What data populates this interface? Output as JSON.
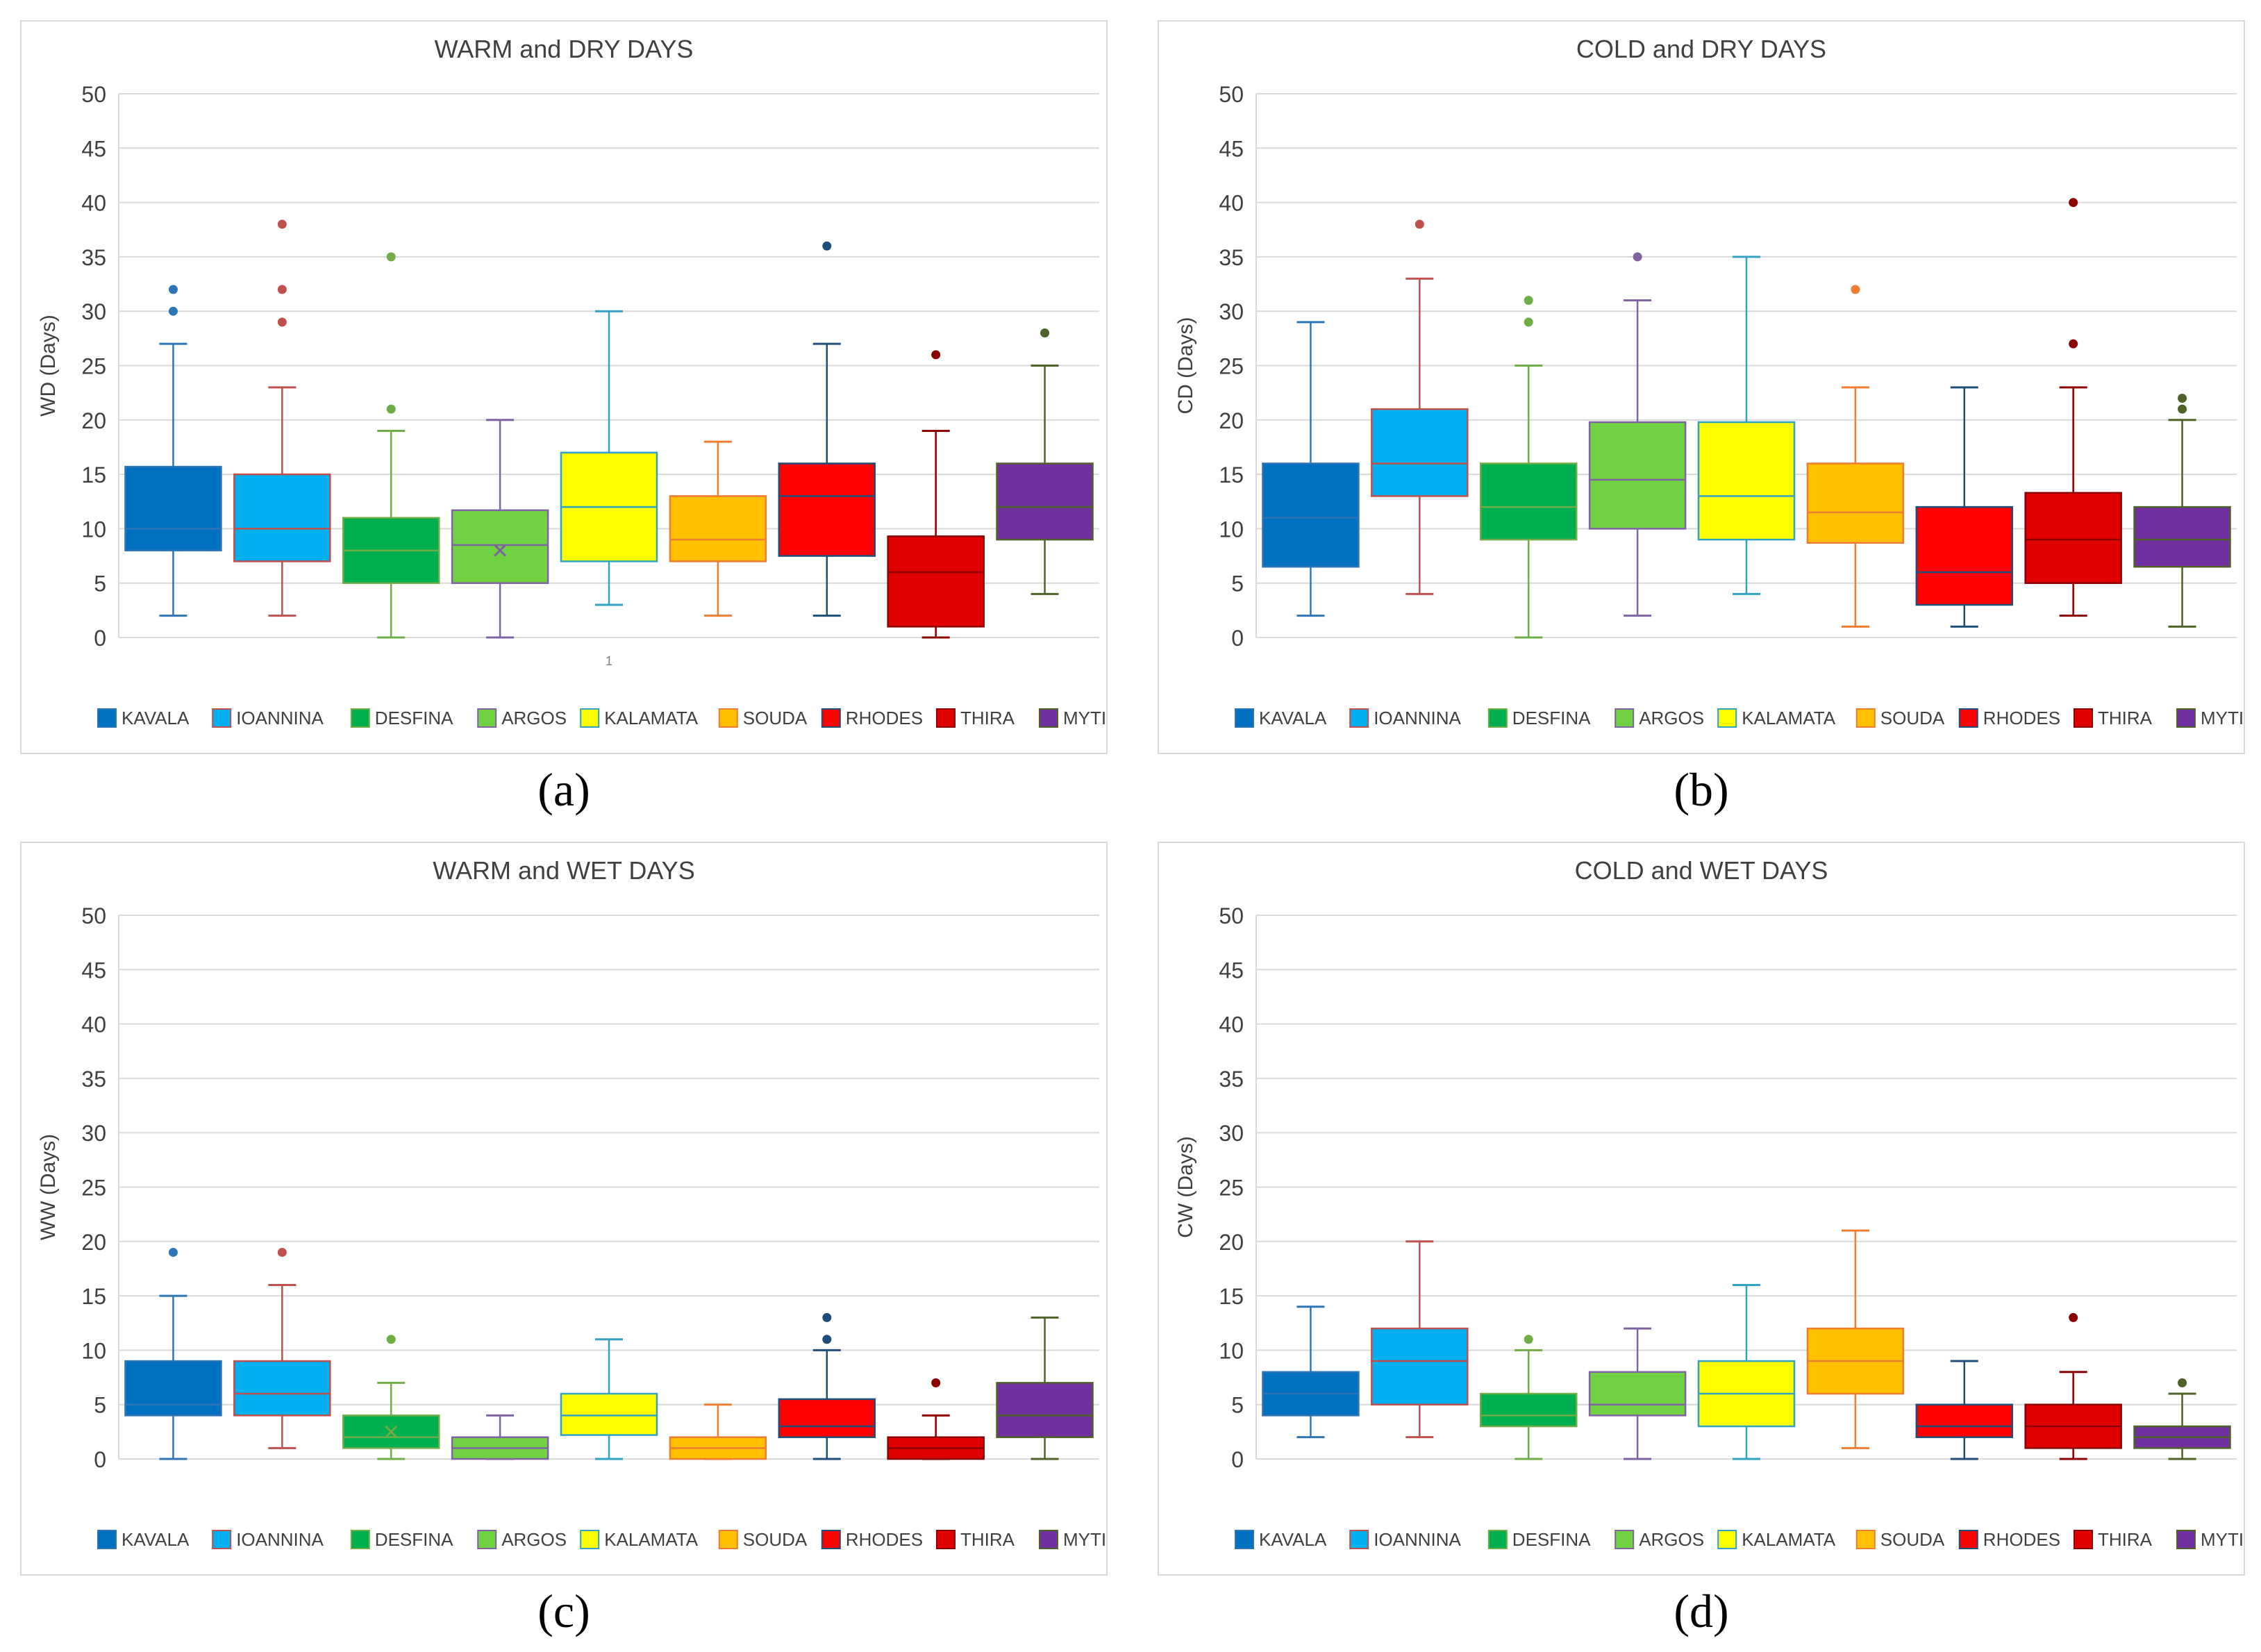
{
  "figure": {
    "panel_letters": [
      "(a)",
      "(b)",
      "(c)",
      "(d)"
    ]
  },
  "chart_data": [
    {
      "type": "boxplot",
      "title": "WARM and DRY DAYS",
      "ylabel": "WD (Days)",
      "xlabel": "",
      "x_tick_labels": [
        "1"
      ],
      "ylim": [
        0,
        50
      ],
      "yticks": [
        0,
        5,
        10,
        15,
        20,
        25,
        30,
        35,
        40,
        45,
        50
      ],
      "legend_position": "bottom",
      "series": [
        {
          "name": "KAVALA",
          "color": "#0070c0",
          "whisker_color": "#2e75b6",
          "whisker_low": 2,
          "q1": 8,
          "median": 10,
          "q3": 15.7,
          "whisker_high": 27,
          "outliers": [
            30,
            32
          ]
        },
        {
          "name": "IOANNINA",
          "color": "#00b0f0",
          "whisker_color": "#c0504d",
          "whisker_low": 2,
          "q1": 7,
          "median": 10,
          "q3": 15,
          "whisker_high": 23,
          "outliers": [
            29,
            32,
            38
          ]
        },
        {
          "name": "DESFINA",
          "color": "#00b050",
          "whisker_color": "#70ad47",
          "whisker_low": 0,
          "q1": 5,
          "median": 8,
          "q3": 11,
          "whisker_high": 19,
          "outliers": [
            21,
            35
          ]
        },
        {
          "name": "ARGOS",
          "color": "#70d142",
          "whisker_color": "#8064a2",
          "whisker_low": 0,
          "q1": 5,
          "median": 8.5,
          "q3": 11.7,
          "whisker_high": 20,
          "outliers": [],
          "mean": 8
        },
        {
          "name": "KALAMATA",
          "color": "#ffff00",
          "whisker_color": "#31a2c4",
          "whisker_low": 3,
          "q1": 7,
          "median": 12,
          "q3": 17,
          "whisker_high": 30,
          "outliers": []
        },
        {
          "name": "SOUDA",
          "color": "#ffc000",
          "whisker_color": "#ed7d31",
          "whisker_low": 2,
          "q1": 7,
          "median": 9,
          "q3": 13,
          "whisker_high": 18,
          "outliers": []
        },
        {
          "name": "RHODES",
          "color": "#ff0000",
          "whisker_color": "#1f4e79",
          "whisker_low": 2,
          "q1": 7.5,
          "median": 13,
          "q3": 16,
          "whisker_high": 27,
          "outliers": [
            36
          ]
        },
        {
          "name": "THIRA",
          "color": "#e00000",
          "whisker_color": "#8b0000",
          "whisker_low": 0,
          "q1": 1,
          "median": 6,
          "q3": 9.3,
          "whisker_high": 19,
          "outliers": [
            26
          ]
        },
        {
          "name": "MYTILINI",
          "color": "#7030a0",
          "whisker_color": "#4f6228",
          "whisker_low": 4,
          "q1": 9,
          "median": 12,
          "q3": 16,
          "whisker_high": 25,
          "outliers": [
            28
          ]
        }
      ]
    },
    {
      "type": "boxplot",
      "title": "COLD and DRY DAYS",
      "ylabel": "CD (Days)",
      "xlabel": "",
      "x_tick_labels": [],
      "ylim": [
        0,
        50
      ],
      "yticks": [
        0,
        5,
        10,
        15,
        20,
        25,
        30,
        35,
        40,
        45,
        50
      ],
      "legend_position": "bottom",
      "series": [
        {
          "name": "KAVALA",
          "color": "#0070c0",
          "whisker_color": "#2e75b6",
          "whisker_low": 2,
          "q1": 6.5,
          "median": 11,
          "q3": 16,
          "whisker_high": 29,
          "outliers": []
        },
        {
          "name": "IOANNINA",
          "color": "#00b0f0",
          "whisker_color": "#c0504d",
          "whisker_low": 4,
          "q1": 13,
          "median": 16,
          "q3": 21,
          "whisker_high": 33,
          "outliers": [
            38
          ]
        },
        {
          "name": "DESFINA",
          "color": "#00b050",
          "whisker_color": "#70ad47",
          "whisker_low": 0,
          "q1": 9,
          "median": 12,
          "q3": 16,
          "whisker_high": 25,
          "outliers": [
            29,
            31
          ]
        },
        {
          "name": "ARGOS",
          "color": "#70d142",
          "whisker_color": "#8064a2",
          "whisker_low": 2,
          "q1": 10,
          "median": 14.5,
          "q3": 19.8,
          "whisker_high": 31,
          "outliers": [
            35
          ]
        },
        {
          "name": "KALAMATA",
          "color": "#ffff00",
          "whisker_color": "#31a2c4",
          "whisker_low": 4,
          "q1": 9,
          "median": 13,
          "q3": 19.8,
          "whisker_high": 35,
          "outliers": []
        },
        {
          "name": "SOUDA",
          "color": "#ffc000",
          "whisker_color": "#ed7d31",
          "whisker_low": 1,
          "q1": 8.7,
          "median": 11.5,
          "q3": 16,
          "whisker_high": 23,
          "outliers": [
            32
          ]
        },
        {
          "name": "RHODES",
          "color": "#ff0000",
          "whisker_color": "#1f4e79",
          "whisker_low": 1,
          "q1": 3,
          "median": 6,
          "q3": 12,
          "whisker_high": 23,
          "outliers": []
        },
        {
          "name": "THIRA",
          "color": "#e00000",
          "whisker_color": "#8b0000",
          "whisker_low": 2,
          "q1": 5,
          "median": 9,
          "q3": 13.3,
          "whisker_high": 23,
          "outliers": [
            27,
            40
          ]
        },
        {
          "name": "MYTILINI",
          "color": "#7030a0",
          "whisker_color": "#4f6228",
          "whisker_low": 1,
          "q1": 6.5,
          "median": 9,
          "q3": 12,
          "whisker_high": 20,
          "outliers": [
            21,
            22
          ]
        }
      ]
    },
    {
      "type": "boxplot",
      "title": "WARM and WET DAYS",
      "ylabel": "WW (Days)",
      "xlabel": "",
      "x_tick_labels": [],
      "ylim": [
        0,
        50
      ],
      "yticks": [
        0,
        5,
        10,
        15,
        20,
        25,
        30,
        35,
        40,
        45,
        50
      ],
      "legend_position": "bottom",
      "series": [
        {
          "name": "KAVALA",
          "color": "#0070c0",
          "whisker_color": "#2e75b6",
          "whisker_low": 0,
          "q1": 4,
          "median": 5,
          "q3": 9,
          "whisker_high": 15,
          "outliers": [
            19
          ]
        },
        {
          "name": "IOANNINA",
          "color": "#00b0f0",
          "whisker_color": "#c0504d",
          "whisker_low": 1,
          "q1": 4,
          "median": 6,
          "q3": 9,
          "whisker_high": 16,
          "outliers": [
            19
          ]
        },
        {
          "name": "DESFINA",
          "color": "#00b050",
          "whisker_color": "#70ad47",
          "whisker_low": 0,
          "q1": 1,
          "median": 2,
          "q3": 4,
          "whisker_high": 7,
          "outliers": [
            11
          ],
          "mean": 2.5
        },
        {
          "name": "ARGOS",
          "color": "#70d142",
          "whisker_color": "#8064a2",
          "whisker_low": 0,
          "q1": 0,
          "median": 1,
          "q3": 2,
          "whisker_high": 4,
          "outliers": []
        },
        {
          "name": "KALAMATA",
          "color": "#ffff00",
          "whisker_color": "#31a2c4",
          "whisker_low": 0,
          "q1": 2.2,
          "median": 4,
          "q3": 6,
          "whisker_high": 11,
          "outliers": []
        },
        {
          "name": "SOUDA",
          "color": "#ffc000",
          "whisker_color": "#ed7d31",
          "whisker_low": 0,
          "q1": 0,
          "median": 1,
          "q3": 2,
          "whisker_high": 5,
          "outliers": []
        },
        {
          "name": "RHODES",
          "color": "#ff0000",
          "whisker_color": "#1f4e79",
          "whisker_low": 0,
          "q1": 2,
          "median": 3,
          "q3": 5.5,
          "whisker_high": 10,
          "outliers": [
            11,
            13
          ]
        },
        {
          "name": "THIRA",
          "color": "#e00000",
          "whisker_color": "#8b0000",
          "whisker_low": 0,
          "q1": 0,
          "median": 1,
          "q3": 2,
          "whisker_high": 4,
          "outliers": [
            7
          ]
        },
        {
          "name": "MYTILINI",
          "color": "#7030a0",
          "whisker_color": "#4f6228",
          "whisker_low": 0,
          "q1": 2,
          "median": 4,
          "q3": 7,
          "whisker_high": 13,
          "outliers": []
        }
      ]
    },
    {
      "type": "boxplot",
      "title": "COLD and WET DAYS",
      "ylabel": "CW (Days)",
      "xlabel": "",
      "x_tick_labels": [],
      "ylim": [
        0,
        50
      ],
      "yticks": [
        0,
        5,
        10,
        15,
        20,
        25,
        30,
        35,
        40,
        45,
        50
      ],
      "legend_position": "bottom",
      "series": [
        {
          "name": "KAVALA",
          "color": "#0070c0",
          "whisker_color": "#2e75b6",
          "whisker_low": 2,
          "q1": 4,
          "median": 6,
          "q3": 8,
          "whisker_high": 14,
          "outliers": []
        },
        {
          "name": "IOANNINA",
          "color": "#00b0f0",
          "whisker_color": "#c0504d",
          "whisker_low": 2,
          "q1": 5,
          "median": 9,
          "q3": 12,
          "whisker_high": 20,
          "outliers": []
        },
        {
          "name": "DESFINA",
          "color": "#00b050",
          "whisker_color": "#70ad47",
          "whisker_low": 0,
          "q1": 3,
          "median": 4,
          "q3": 6,
          "whisker_high": 10,
          "outliers": [
            11
          ]
        },
        {
          "name": "ARGOS",
          "color": "#70d142",
          "whisker_color": "#8064a2",
          "whisker_low": 0,
          "q1": 4,
          "median": 5,
          "q3": 8,
          "whisker_high": 12,
          "outliers": []
        },
        {
          "name": "KALAMATA",
          "color": "#ffff00",
          "whisker_color": "#31a2c4",
          "whisker_low": 0,
          "q1": 3,
          "median": 6,
          "q3": 9,
          "whisker_high": 16,
          "outliers": []
        },
        {
          "name": "SOUDA",
          "color": "#ffc000",
          "whisker_color": "#ed7d31",
          "whisker_low": 1,
          "q1": 6,
          "median": 9,
          "q3": 12,
          "whisker_high": 21,
          "outliers": []
        },
        {
          "name": "RHODES",
          "color": "#ff0000",
          "whisker_color": "#1f4e79",
          "whisker_low": 0,
          "q1": 2,
          "median": 3,
          "q3": 5,
          "whisker_high": 9,
          "outliers": []
        },
        {
          "name": "THIRA",
          "color": "#e00000",
          "whisker_color": "#8b0000",
          "whisker_low": 0,
          "q1": 1,
          "median": 3,
          "q3": 5,
          "whisker_high": 8,
          "outliers": [
            13
          ]
        },
        {
          "name": "MYTILINI",
          "color": "#7030a0",
          "whisker_color": "#4f6228",
          "whisker_low": 0,
          "q1": 1,
          "median": 2,
          "q3": 3,
          "whisker_high": 6,
          "outliers": [
            7
          ]
        }
      ]
    }
  ]
}
